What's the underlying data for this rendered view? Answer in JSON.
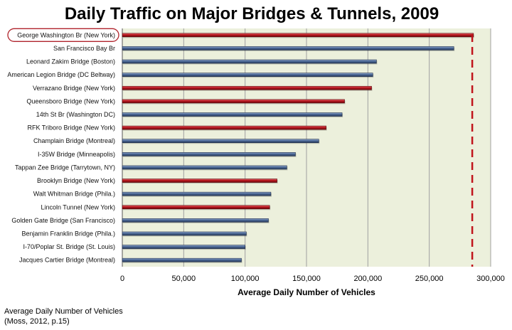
{
  "chart_data": {
    "type": "bar",
    "orientation": "horizontal",
    "title": "Daily Traffic on Major Bridges & Tunnels, 2009",
    "xlabel": "Average Daily Number of Vehicles",
    "ylabel": "",
    "xlim": [
      0,
      300000
    ],
    "xticks": [
      0,
      50000,
      100000,
      150000,
      200000,
      250000,
      300000
    ],
    "xtick_labels": [
      "0",
      "50,000",
      "100,000",
      "150,000",
      "200,000",
      "250,000",
      "300,000"
    ],
    "grid": "vertical",
    "categories": [
      "George Washington Br (New York)",
      "San Francisco Bay Br",
      "Leonard Zakim Bridge (Boston)",
      "American Legion Bridge (DC Beltway)",
      "Verrazano Bridge (New York)",
      "Queensboro Bridge (New York)",
      "14th St Br (Washington DC)",
      "RFK Triboro Bridge (New York)",
      "Champlain Bridge (Montreal)",
      "I-35W Bridge (Minneapolis)",
      "Tappan Zee Bridge (Tarrytown, NY)",
      "Brooklyn Bridge (New York)",
      "Walt Whitman Bridge (Phila.)",
      "Lincoln Tunnel (New York)",
      "Golden Gate Bridge (San Francisco)",
      "Benjamin Franklin Bridge (Phila.)",
      "I-70/Poplar St. Bridge (St. Louis)",
      "Jacques Cartier Bridge (Montreal)"
    ],
    "values": [
      286000,
      270000,
      207000,
      204000,
      203000,
      181000,
      179000,
      166000,
      160000,
      141000,
      134000,
      126000,
      121000,
      120000,
      119000,
      101000,
      100000,
      97000
    ],
    "highlight": [
      true,
      false,
      false,
      false,
      true,
      true,
      false,
      true,
      false,
      false,
      false,
      true,
      false,
      true,
      false,
      false,
      false,
      false
    ],
    "colors": {
      "highlight": "#c0141c",
      "normal": "#4a6a9c",
      "plot_bg": "#ecf0dc",
      "grid": "#a0a0a0",
      "reference_line": "#c0141c"
    },
    "reference_line_value": 285000,
    "circled_category_index": 0
  },
  "caption": {
    "line1": "Average Daily Number of Vehicles",
    "line2": "(Moss, 2012, p.15)"
  }
}
